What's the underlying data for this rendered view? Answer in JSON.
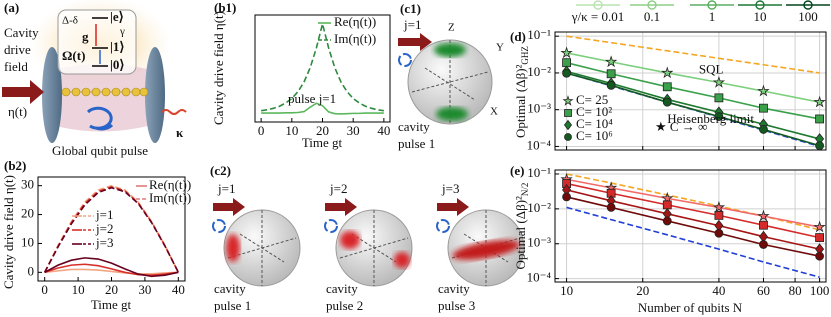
{
  "illustrations": {
    "panel_a": {
      "label": "(a)",
      "drive": [
        "Cavity",
        "drive",
        "field"
      ],
      "eta": "η(t)",
      "kappa": "κ",
      "pulse": "Global qubit pulse",
      "levels": {
        "detuning": "Δ-δ",
        "e": "|e⟩",
        "gamma": "γ",
        "g": "g",
        "one": "|1⟩",
        "omega": "Ω(t)",
        "zero": "|0⟩"
      }
    },
    "panel_c1": {
      "label": "(c1)",
      "j": "j=1",
      "axes": [
        "Z",
        "Y",
        "X"
      ],
      "caption": [
        "cavity",
        "pulse 1"
      ]
    },
    "panel_c2": {
      "label": "(c2)",
      "spheres": [
        {
          "j": "j=1",
          "caption": [
            "cavity",
            "pulse 1"
          ]
        },
        {
          "j": "j=2",
          "caption": [
            "cavity",
            "pulse 2"
          ]
        },
        {
          "j": "j=3",
          "caption": [
            "cavity",
            "pulse 3"
          ]
        }
      ]
    }
  },
  "chart_data": [
    {
      "type": "line",
      "label": "(b1)",
      "xlabel": "Time gt",
      "ylabel": "Cavity drive field η(t)",
      "annotation": "pulse j=1",
      "x": [
        0,
        2,
        4,
        6,
        8,
        10,
        12,
        14,
        16,
        18,
        20,
        22,
        24,
        26,
        28,
        30,
        32,
        34,
        36,
        38,
        40
      ],
      "xlim": [
        -2,
        42
      ],
      "ylim": [
        -3,
        33
      ],
      "xticks": [
        0,
        10,
        20,
        30,
        40
      ],
      "series": [
        {
          "name": "Re(η(t))",
          "color": "#5cb85c",
          "values": [
            0,
            0,
            0,
            0,
            0.1,
            0.1,
            0.2,
            0.5,
            2,
            3.3,
            2.5,
            0.4,
            -0.2,
            -0.3,
            -0.2,
            -0.1,
            -0.1,
            0,
            0,
            0,
            0
          ]
        },
        {
          "name": "Im(η(t))",
          "color": "#2e8b3e",
          "dashed": true,
          "values": [
            0.8,
            1.1,
            1.6,
            2.3,
            3.4,
            4.9,
            7.2,
            10.5,
            15.3,
            21.9,
            30,
            21.9,
            15.3,
            10.5,
            7.2,
            4.9,
            3.4,
            2.3,
            1.6,
            1.1,
            0.8
          ]
        }
      ]
    },
    {
      "type": "line",
      "label": "(b2)",
      "xlabel": "Time gt",
      "ylabel": "Cavity drive field η(t)",
      "legend_styles": [
        "Re(η(t))",
        "Im(η(t))"
      ],
      "legend_color": "#e07a7a",
      "x": [
        0,
        4,
        8,
        12,
        16,
        20,
        24,
        28,
        32,
        36,
        40
      ],
      "xlim": [
        -2,
        42
      ],
      "ylim": [
        -3,
        33
      ],
      "xticks": [
        0,
        10,
        20,
        30,
        40
      ],
      "yticks": [
        0,
        10,
        20,
        30
      ],
      "series": [
        {
          "name": "j=1",
          "color": "#f4a582",
          "values": [
            0,
            0.5,
            1,
            1,
            0.8,
            0.3,
            -0.2,
            -0.5,
            -0.5,
            -0.2,
            0
          ],
          "values_im": [
            0,
            9.3,
            17.6,
            24.3,
            28.5,
            30,
            28.5,
            24.3,
            17.6,
            9.3,
            0
          ]
        },
        {
          "name": "j=2",
          "color": "#d6302b",
          "values": [
            0,
            1.5,
            2.5,
            2.8,
            2.3,
            1.2,
            0,
            -0.8,
            -1,
            -0.6,
            0
          ],
          "values_im": [
            0,
            9,
            17.2,
            23.8,
            28,
            29.6,
            28.2,
            24,
            17.4,
            9.2,
            0
          ]
        },
        {
          "name": "j=3",
          "color": "#67001f",
          "values": [
            0,
            2.5,
            4.2,
            5,
            4.6,
            3.2,
            1.2,
            -0.6,
            -1.4,
            -1,
            0
          ],
          "values_im": [
            0,
            8.8,
            16.8,
            23.3,
            27.6,
            29.3,
            27.9,
            23.8,
            17.2,
            9.1,
            0
          ]
        }
      ]
    },
    {
      "type": "line",
      "label": "(d)",
      "ylabel": "Optimal (Δβ)²",
      "ylabel_sub": "GHZ",
      "note": "★ C → ∞",
      "xscale": "log",
      "yscale": "log",
      "grid": true,
      "x": [
        10,
        15,
        25,
        40,
        60,
        100
      ],
      "xlim": [
        9,
        106
      ],
      "ylim": [
        8e-05,
        0.13
      ],
      "xticks": [
        10,
        20,
        40,
        60,
        80,
        100
      ],
      "yticks": [
        {
          "value": 0.1,
          "label": "10⁻¹"
        },
        {
          "value": 0.01,
          "label": "10⁻²"
        },
        {
          "value": 0.001,
          "label": "10⁻³"
        },
        {
          "value": 0.0001,
          "label": "10⁻⁴"
        }
      ],
      "gamma_legend": [
        {
          "label": "γ/κ = 0.01",
          "color": "#b8e3b0"
        },
        {
          "label": "0.1",
          "color": "#8fcf87"
        },
        {
          "label": "1",
          "color": "#5aae61"
        },
        {
          "label": "10",
          "color": "#1b7837"
        },
        {
          "label": "100",
          "color": "#00441b"
        }
      ],
      "series": [
        {
          "name": "SQL",
          "color": "#f5a623",
          "dashed": true,
          "values": [
            0.1,
            0.0667,
            0.04,
            0.025,
            0.0167,
            0.01
          ]
        },
        {
          "name": "Heisenberg limit",
          "color": "#1f3fd6",
          "dashed": true,
          "values": [
            0.01,
            0.00444,
            0.0016,
            0.000625,
            0.000278,
            0.0001
          ]
        },
        {
          "name": "C= 25",
          "color": "#7ccf7c",
          "marker": "star",
          "values": [
            0.035,
            0.02,
            0.01,
            0.0055,
            0.0032,
            0.0016
          ]
        },
        {
          "name": "C= 10²",
          "color": "#3aa04a",
          "marker": "square",
          "values": [
            0.019,
            0.0095,
            0.0042,
            0.0021,
            0.0011,
            0.00056
          ]
        },
        {
          "name": "C= 10⁴",
          "color": "#1e7a2e",
          "marker": "diamond",
          "values": [
            0.011,
            0.0052,
            0.0019,
            0.00085,
            0.0004,
            0.00016
          ]
        },
        {
          "name": "C= 10⁶",
          "color": "#145a20",
          "marker": "circle",
          "values": [
            0.0098,
            0.0046,
            0.0016,
            0.00065,
            0.00029,
            0.000105
          ]
        }
      ]
    },
    {
      "type": "line",
      "label": "(e)",
      "xlabel": "Number of qubits N",
      "ylabel": "Optimal (Δβ)²",
      "ylabel_sub": "N/2",
      "xscale": "log",
      "yscale": "log",
      "grid": true,
      "x": [
        10,
        15,
        25,
        40,
        60,
        100
      ],
      "xlim": [
        9,
        106
      ],
      "ylim": [
        8e-05,
        0.13
      ],
      "xticks": [
        10,
        20,
        40,
        60,
        80,
        100
      ],
      "yticks": [
        {
          "value": 0.1,
          "label": "10⁻¹"
        },
        {
          "value": 0.01,
          "label": "10⁻²"
        },
        {
          "value": 0.001,
          "label": "10⁻³"
        },
        {
          "value": 0.0001,
          "label": "10⁻⁴"
        }
      ],
      "series": [
        {
          "color": "#f5a623",
          "dashed": true,
          "values": [
            0.1,
            0.055,
            0.025,
            0.012,
            0.0062,
            0.0025
          ]
        },
        {
          "color": "#1f3fd6",
          "dashed": true,
          "values": [
            0.011,
            0.0049,
            0.0018,
            0.0007,
            0.0003,
            0.00011
          ]
        },
        {
          "color": "#f26b6b",
          "marker": "star",
          "values": [
            0.07,
            0.04,
            0.02,
            0.011,
            0.0062,
            0.003
          ]
        },
        {
          "color": "#d42a2a",
          "marker": "square",
          "values": [
            0.053,
            0.028,
            0.013,
            0.0065,
            0.0034,
            0.0015
          ]
        },
        {
          "color": "#a51515",
          "marker": "diamond",
          "values": [
            0.035,
            0.017,
            0.0072,
            0.0033,
            0.0016,
            0.0007
          ]
        },
        {
          "color": "#6e0a0a",
          "marker": "circle",
          "values": [
            0.022,
            0.011,
            0.0045,
            0.002,
            0.00095,
            0.00044
          ]
        }
      ]
    }
  ]
}
